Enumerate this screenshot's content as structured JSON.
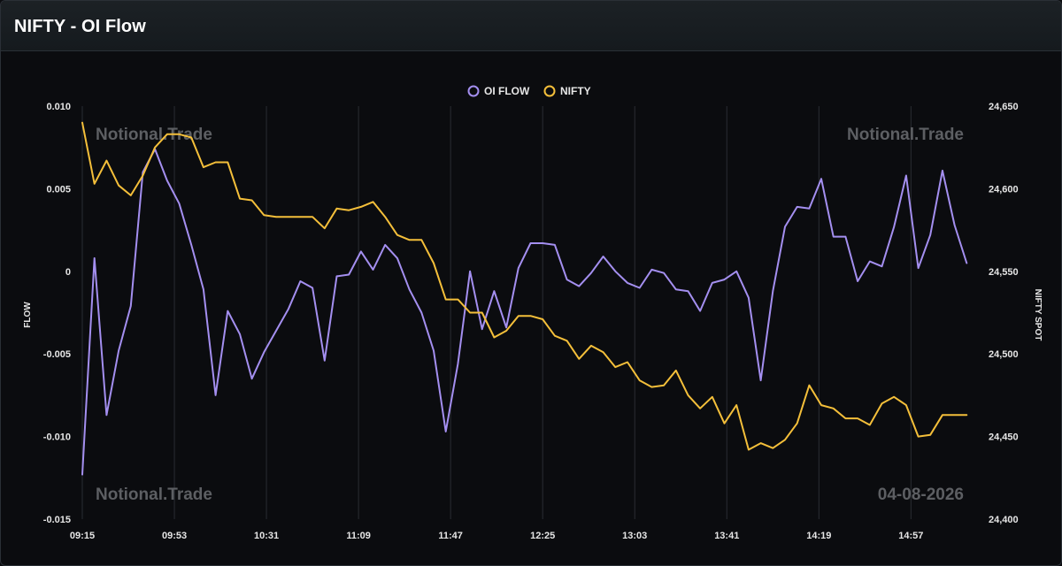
{
  "header": {
    "title": "NIFTY - OI Flow"
  },
  "watermarks": {
    "top_left": "Notional.Trade",
    "top_right": "Notional.Trade",
    "bottom_left": "Notional.Trade",
    "bottom_right": "04-08-2026"
  },
  "colors": {
    "oi_flow": "#a48ff0",
    "nifty": "#f4bf3a",
    "background": "#0b0c0f",
    "grid": "#2a2d33"
  },
  "chart_data": {
    "type": "line",
    "xlabel": "",
    "ylabel": "FLOW",
    "y2label": "NIFTY SPOT",
    "legend_position": "top-center",
    "grid": "vertical",
    "x_ticks": [
      "09:15",
      "09:53",
      "10:31",
      "11:09",
      "11:47",
      "12:25",
      "13:03",
      "13:41",
      "14:19",
      "14:57"
    ],
    "ylim": [
      -0.015,
      0.01
    ],
    "y_ticks": [
      "0.010",
      "0.005",
      "0",
      "-0.005",
      "-0.010",
      "-0.015"
    ],
    "y2lim": [
      24400,
      24650
    ],
    "y2_ticks": [
      "24,650",
      "24,600",
      "24,550",
      "24,500",
      "24,450",
      "24,400"
    ],
    "x": [
      "09:15",
      "09:20",
      "09:25",
      "09:30",
      "09:35",
      "09:40",
      "09:45",
      "09:50",
      "09:55",
      "10:00",
      "10:05",
      "10:10",
      "10:15",
      "10:20",
      "10:25",
      "10:30",
      "10:35",
      "10:40",
      "10:45",
      "10:50",
      "10:55",
      "11:00",
      "11:05",
      "11:10",
      "11:15",
      "11:20",
      "11:25",
      "11:30",
      "11:35",
      "11:40",
      "11:45",
      "11:50",
      "11:55",
      "12:00",
      "12:05",
      "12:10",
      "12:15",
      "12:20",
      "12:25",
      "12:30",
      "12:35",
      "12:40",
      "12:45",
      "12:50",
      "12:55",
      "13:00",
      "13:05",
      "13:10",
      "13:15",
      "13:20",
      "13:25",
      "13:30",
      "13:35",
      "13:40",
      "13:45",
      "13:50",
      "13:55",
      "14:00",
      "14:05",
      "14:10",
      "14:15",
      "14:20",
      "14:25",
      "14:30",
      "14:35",
      "14:40",
      "14:45",
      "14:50",
      "14:55",
      "15:00",
      "15:05",
      "15:10",
      "15:15",
      "15:20",
      "15:25"
    ],
    "series": [
      {
        "name": "OI FLOW",
        "axis": "left",
        "values": [
          -0.0123,
          0.0008,
          -0.0087,
          -0.0048,
          -0.0021,
          0.006,
          0.0074,
          0.0055,
          0.0041,
          0.0016,
          -0.0011,
          -0.0075,
          -0.0024,
          -0.0038,
          -0.0065,
          -0.0049,
          -0.0036,
          -0.0023,
          -0.0006,
          -0.001,
          -0.0054,
          -0.0003,
          -0.0002,
          0.0012,
          0.0001,
          0.0016,
          0.0008,
          -0.0011,
          -0.0025,
          -0.0048,
          -0.0097,
          -0.0056,
          0.0,
          -0.0035,
          -0.0012,
          -0.0034,
          0.0002,
          0.0017,
          0.0017,
          0.0016,
          -0.0005,
          -0.0009,
          -0.0001,
          0.0009,
          0.0,
          -0.0007,
          -0.001,
          0.0001,
          -0.0001,
          -0.0011,
          -0.0012,
          -0.0024,
          -0.0007,
          -0.0005,
          0.0,
          -0.0016,
          -0.0066,
          -0.0012,
          0.0027,
          0.0039,
          0.0038,
          0.0056,
          0.0021,
          0.0021,
          -0.0006,
          0.0006,
          0.0003,
          0.0027,
          0.0058,
          0.0002,
          0.0022,
          0.0061,
          0.0028,
          0.0005,
          null
        ]
      },
      {
        "name": "NIFTY",
        "axis": "right",
        "values": [
          24640,
          24603,
          24617,
          24602,
          24596,
          24608,
          24625,
          24633,
          24633,
          24631,
          24613,
          24616,
          24616,
          24594,
          24593,
          24584,
          24583,
          24583,
          24583,
          24583,
          24576,
          24588,
          24587,
          24589,
          24592,
          24583,
          24572,
          24569,
          24569,
          24555,
          24533,
          24533,
          24525,
          24525,
          24510,
          24514,
          24523,
          24523,
          24521,
          24511,
          24508,
          24497,
          24505,
          24501,
          24492,
          24495,
          24484,
          24480,
          24481,
          24490,
          24475,
          24467,
          24474,
          24458,
          24469,
          24442,
          24446,
          24443,
          24448,
          24458,
          24481,
          24469,
          24467,
          24461,
          24461,
          24457,
          24470,
          24474,
          24469,
          24450,
          24451,
          24463,
          24463,
          24463,
          null
        ]
      }
    ]
  }
}
